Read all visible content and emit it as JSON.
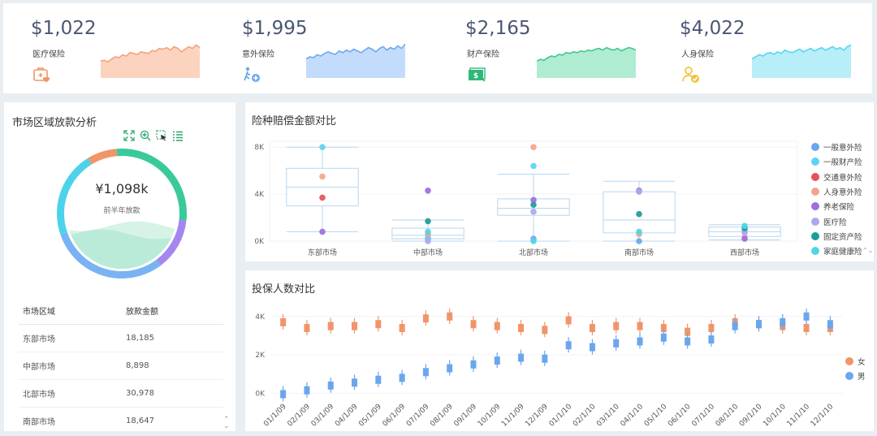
{
  "kpis": [
    {
      "value": "$1,022",
      "label": "医疗保险",
      "icon": "medical-kit-icon",
      "color": "#f4a27c",
      "fill": "#fcd3bf",
      "spark": [
        0.4,
        0.42,
        0.38,
        0.45,
        0.5,
        0.48,
        0.55,
        0.52,
        0.6,
        0.58,
        0.56,
        0.62,
        0.6,
        0.58,
        0.65,
        0.63,
        0.7,
        0.68,
        0.72,
        0.66,
        0.74,
        0.7,
        0.62,
        0.68,
        0.74,
        0.7,
        0.78,
        0.72
      ]
    },
    {
      "value": "$1,995",
      "label": "意外保险",
      "icon": "accident-icon",
      "color": "#6fa8ee",
      "fill": "#c3dcfb",
      "spark": [
        0.45,
        0.5,
        0.48,
        0.55,
        0.52,
        0.58,
        0.62,
        0.58,
        0.56,
        0.64,
        0.6,
        0.66,
        0.62,
        0.68,
        0.64,
        0.6,
        0.66,
        0.72,
        0.68,
        0.62,
        0.7,
        0.74,
        0.66,
        0.72,
        0.68,
        0.76,
        0.7,
        0.8
      ]
    },
    {
      "value": "$2,165",
      "label": "财产保险",
      "icon": "property-icon",
      "color": "#3ec98a",
      "fill": "#b0ecd2",
      "spark": [
        0.4,
        0.44,
        0.42,
        0.48,
        0.52,
        0.5,
        0.56,
        0.54,
        0.6,
        0.58,
        0.62,
        0.6,
        0.64,
        0.62,
        0.66,
        0.64,
        0.68,
        0.7,
        0.66,
        0.72,
        0.68,
        0.66,
        0.7,
        0.64,
        0.68,
        0.72,
        0.7,
        0.66
      ]
    },
    {
      "value": "$4,022",
      "label": "人身保险",
      "icon": "person-check-icon",
      "color": "#58d5ee",
      "fill": "#b7eef8",
      "spark": [
        0.45,
        0.5,
        0.55,
        0.52,
        0.58,
        0.6,
        0.56,
        0.62,
        0.58,
        0.66,
        0.62,
        0.6,
        0.64,
        0.68,
        0.62,
        0.66,
        0.7,
        0.64,
        0.68,
        0.72,
        0.66,
        0.7,
        0.74,
        0.68,
        0.72,
        0.66,
        0.74,
        0.78
      ]
    }
  ],
  "region": {
    "title": "市场区域放款分析",
    "tools": [
      "fullscreen-icon",
      "zoom-in-icon",
      "select-icon",
      "list-icon"
    ],
    "donut_value": "¥1,098k",
    "donut_label": "前半年放款",
    "segments": [
      {
        "color": "#f0956a",
        "frac": 0.075
      },
      {
        "color": "#3ac99a",
        "frac": 0.28
      },
      {
        "color": "#a586f0",
        "frac": 0.13
      },
      {
        "color": "#7ab3f4",
        "frac": 0.3
      },
      {
        "color": "#4cd3ea",
        "frac": 0.215
      }
    ],
    "fill_level": 0.35,
    "table": {
      "headers": [
        "市场区域",
        "放款金额"
      ],
      "rows": [
        [
          "东部市场",
          "18,185"
        ],
        [
          "中部市场",
          "8,898"
        ],
        [
          "北部市场",
          "30,978"
        ],
        [
          "南部市场",
          "18,647"
        ]
      ]
    },
    "scroll_up": "⌃",
    "scroll_down": "⌄"
  },
  "boxplot": {
    "title": "险种赔偿金额对比",
    "chart_data": {
      "type": "boxplot",
      "title": "险种赔偿金额对比",
      "categories": [
        "东部市场",
        "中部市场",
        "北部市场",
        "南部市场",
        "西部市场"
      ],
      "yticks": [
        [
          "0K",
          0
        ],
        [
          "4K",
          4000
        ],
        [
          "8K",
          8000
        ]
      ],
      "ylim": [
        0,
        8500
      ],
      "boxes": [
        {
          "min": 800,
          "q1": 3000,
          "median": 4600,
          "q3": 6200,
          "max": 8000
        },
        {
          "min": 0,
          "q1": 200,
          "median": 500,
          "q3": 1100,
          "max": 1800
        },
        {
          "min": 0,
          "q1": 2200,
          "median": 2800,
          "q3": 3600,
          "max": 5700
        },
        {
          "min": 0,
          "q1": 700,
          "median": 1800,
          "q3": 4200,
          "max": 5100
        },
        {
          "min": 100,
          "q1": 400,
          "median": 800,
          "q3": 1200,
          "max": 1400
        }
      ],
      "series": [
        {
          "name": "一般意外险",
          "color": "#6aa6ee",
          "values": [
            null,
            200,
            200,
            0,
            null
          ]
        },
        {
          "name": "一般财产险",
          "color": "#5dd2f2",
          "values": [
            8000,
            300,
            6400,
            null,
            900
          ]
        },
        {
          "name": "交通意外险",
          "color": "#e8505b",
          "values": [
            3700,
            null,
            null,
            null,
            null
          ]
        },
        {
          "name": "人身意外险",
          "color": "#f4a48a",
          "values": [
            5500,
            600,
            8000,
            600,
            300
          ]
        },
        {
          "name": "养老保险",
          "color": "#9f6fdc",
          "values": [
            800,
            4300,
            3500,
            4300,
            200
          ]
        },
        {
          "name": "医疗险",
          "color": "#b0a6ee",
          "values": [
            null,
            0,
            2500,
            4200,
            700
          ]
        },
        {
          "name": "固定资产险",
          "color": "#1c9b9a",
          "values": [
            null,
            1700,
            3100,
            2300,
            1100
          ]
        },
        {
          "name": "家庭健康险",
          "color": "#4fd6e6",
          "values": [
            null,
            800,
            0,
            800,
            1300
          ]
        }
      ]
    },
    "legend": [
      {
        "name": "一般意外险",
        "color": "#6aa6ee"
      },
      {
        "name": "一般财产险",
        "color": "#5dd2f2"
      },
      {
        "name": "交通意外险",
        "color": "#e8505b"
      },
      {
        "name": "人身意外险",
        "color": "#f4a48a"
      },
      {
        "name": "养老保险",
        "color": "#9f6fdc"
      },
      {
        "name": "医疗险",
        "color": "#b0a6ee"
      },
      {
        "name": "固定资产险",
        "color": "#1c9b9a"
      },
      {
        "name": "家庭健康险",
        "color": "#4fd6e6"
      }
    ],
    "legend_more": "⌃⌄"
  },
  "candle": {
    "title": "投保人数对比",
    "chart_data": {
      "type": "candlestick",
      "title": "投保人数对比",
      "categories": [
        "01/1/09",
        "02/1/09",
        "03/1/09",
        "04/1/09",
        "05/1/09",
        "06/1/09",
        "07/1/09",
        "08/1/09",
        "09/1/09",
        "10/1/09",
        "11/1/09",
        "12/1/09",
        "01/1/10",
        "02/1/10",
        "03/1/10",
        "04/1/10",
        "05/1/10",
        "06/1/10",
        "07/1/10",
        "08/1/10",
        "09/1/10",
        "10/1/10",
        "11/1/10",
        "12/1/10"
      ],
      "yticks": [
        [
          "0K",
          0
        ],
        [
          "2K",
          2000
        ],
        [
          "4K",
          4000
        ]
      ],
      "ylim": [
        -200,
        4500
      ],
      "series": [
        {
          "name": "女",
          "color": "#f0956a",
          "values": [
            3700,
            3400,
            3500,
            3500,
            3600,
            3400,
            3900,
            4000,
            3600,
            3500,
            3400,
            3300,
            3800,
            3400,
            3500,
            3500,
            3400,
            3200,
            3400,
            3700,
            3600,
            3500,
            3400,
            3400
          ]
        },
        {
          "name": "男",
          "color": "#6aa6ee",
          "values": [
            -50,
            150,
            400,
            550,
            700,
            800,
            1100,
            1300,
            1500,
            1700,
            1850,
            1800,
            2500,
            2400,
            2600,
            2700,
            2900,
            2700,
            2800,
            3500,
            3600,
            3700,
            4000,
            3600
          ]
        }
      ]
    },
    "legend": [
      {
        "name": "女",
        "color": "#f0956a"
      },
      {
        "name": "男",
        "color": "#6aa6ee"
      }
    ]
  }
}
